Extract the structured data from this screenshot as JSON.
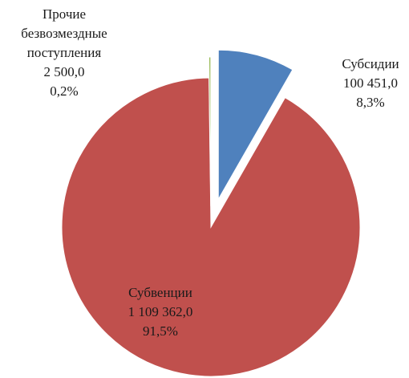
{
  "chart_data": {
    "type": "pie",
    "categories": [
      "Субсидии",
      "Субвенции",
      "Прочие безвозмездные поступления"
    ],
    "values": [
      100451.0,
      1109362.0,
      2500.0
    ],
    "value_labels": [
      "100 451,0",
      "1 109 362,0",
      "2 500,0"
    ],
    "percents": [
      8.3,
      91.5,
      0.2
    ],
    "percent_labels": [
      "8,3%",
      "91,5%",
      "0,2%"
    ],
    "colors": [
      "#4f81bd",
      "#c0504d",
      "#9bbb59"
    ]
  }
}
